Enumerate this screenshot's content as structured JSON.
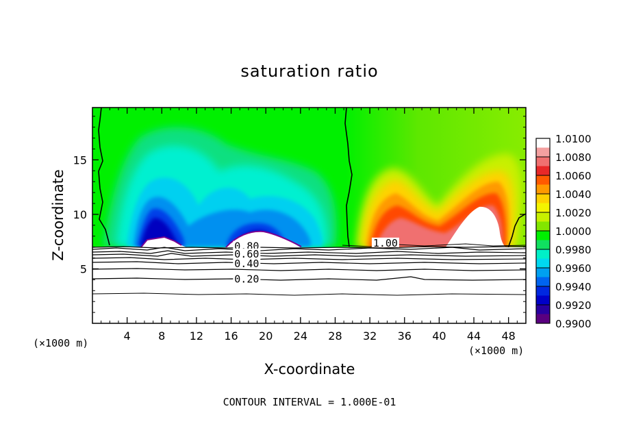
{
  "chart_data": {
    "type": "heatmap",
    "title": "saturation ratio",
    "xlabel": "X-coordinate",
    "ylabel": "Z-coordinate",
    "x_unit": "(×1000 m)",
    "z_unit": "(×1000 m)",
    "xlim": [
      0,
      50
    ],
    "ylim": [
      0,
      19.8
    ],
    "x_ticks": [
      4,
      8,
      12,
      16,
      20,
      24,
      28,
      32,
      36,
      40,
      44,
      48
    ],
    "y_ticks": [
      5,
      10,
      15
    ],
    "footer": "CONTOUR INTERVAL = 1.000E-01",
    "colorbar": {
      "levels": [
        "1.0100",
        "1.0080",
        "1.0060",
        "1.0040",
        "1.0020",
        "1.0000",
        "0.9980",
        "0.9960",
        "0.9940",
        "0.9920",
        "0.9900"
      ],
      "colors": [
        "#ffffff",
        "#f4a0a0",
        "#f07070",
        "#e82828",
        "#ff5a00",
        "#ff9a00",
        "#ffd200",
        "#f4f400",
        "#c8f000",
        "#82e600",
        "#00f000",
        "#10e060",
        "#00f0c8",
        "#00d8f0",
        "#00a0f0",
        "#0064f0",
        "#0028e0",
        "#0000c8",
        "#2800a0",
        "#5a0080"
      ]
    },
    "contour_labels": [
      {
        "text": "0.80",
        "x": 17.8,
        "z": 7.0
      },
      {
        "text": "0.60",
        "x": 17.8,
        "z": 6.3
      },
      {
        "text": "0.40",
        "x": 17.8,
        "z": 5.4
      },
      {
        "text": "0.20",
        "x": 17.8,
        "z": 4.0
      },
      {
        "text": "1.00",
        "x": 33.8,
        "z": 7.3
      }
    ]
  }
}
